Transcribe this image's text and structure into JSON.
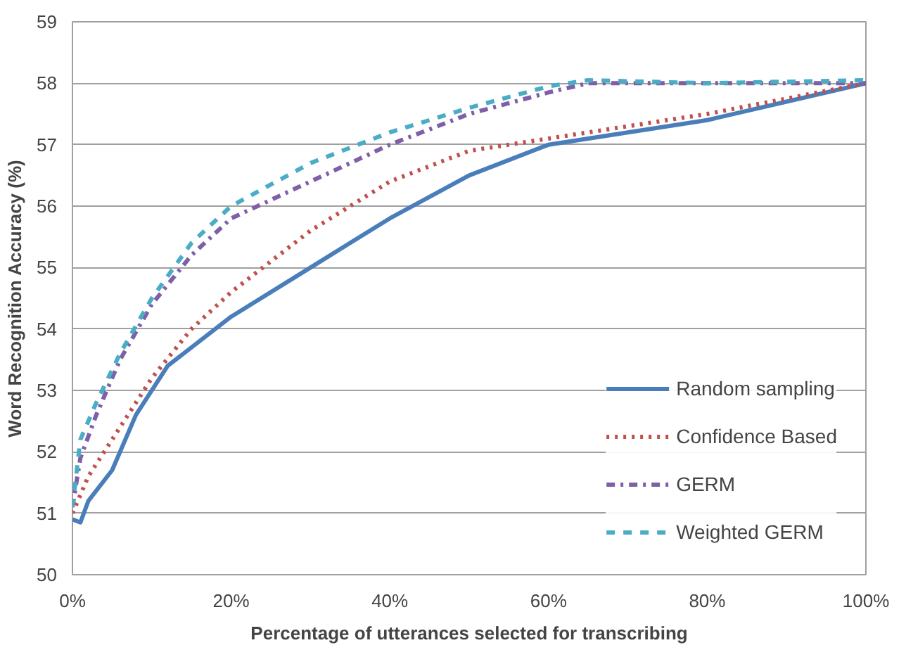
{
  "chart_data": {
    "type": "line",
    "xlabel": "Percentage of utterances selected for transcribing",
    "ylabel": "Word Recognition Accuracy (%)",
    "xlim": [
      0,
      100
    ],
    "ylim": [
      50,
      59
    ],
    "xticks": [
      {
        "value": 0,
        "label": "0%"
      },
      {
        "value": 20,
        "label": "20%"
      },
      {
        "value": 40,
        "label": "40%"
      },
      {
        "value": 60,
        "label": "60%"
      },
      {
        "value": 80,
        "label": "80%"
      },
      {
        "value": 100,
        "label": "100%"
      }
    ],
    "yticks": [
      50,
      51,
      52,
      53,
      54,
      55,
      56,
      57,
      58,
      59
    ],
    "grid": "y",
    "legend": "bottom right",
    "marker": "none",
    "series": [
      {
        "name": "Random sampling",
        "color": "#4a7ebb",
        "line_style": "solid",
        "x": [
          0,
          1,
          2,
          5,
          8,
          12,
          20,
          30,
          40,
          50,
          60,
          70,
          80,
          90,
          100
        ],
        "values": [
          50.9,
          50.85,
          51.2,
          51.7,
          52.6,
          53.4,
          54.2,
          55.0,
          55.8,
          56.5,
          57.0,
          57.2,
          57.4,
          57.7,
          58.0
        ]
      },
      {
        "name": "Confidence Based",
        "color": "#c0504d",
        "line_style": "dotted",
        "x": [
          0,
          2,
          5,
          10,
          15,
          20,
          30,
          40,
          50,
          60,
          70,
          80,
          90,
          100
        ],
        "values": [
          51.0,
          51.6,
          52.2,
          53.2,
          54.0,
          54.6,
          55.6,
          56.4,
          56.9,
          57.1,
          57.3,
          57.5,
          57.75,
          58.0
        ]
      },
      {
        "name": "GERM",
        "color": "#7f5fa8",
        "line_style": "dashdot",
        "x": [
          0,
          1,
          3,
          6,
          10,
          15,
          20,
          30,
          40,
          50,
          60,
          65,
          80,
          100
        ],
        "values": [
          51.1,
          51.9,
          52.6,
          53.5,
          54.4,
          55.2,
          55.8,
          56.4,
          57.0,
          57.5,
          57.85,
          58.0,
          58.0,
          58.0
        ]
      },
      {
        "name": "Weighted GERM",
        "color": "#4bacc6",
        "line_style": "dashed",
        "x": [
          0,
          1,
          3,
          6,
          10,
          15,
          20,
          30,
          40,
          50,
          60,
          65,
          80,
          100
        ],
        "values": [
          51.1,
          52.2,
          52.8,
          53.6,
          54.5,
          55.4,
          56.0,
          56.7,
          57.2,
          57.6,
          57.95,
          58.05,
          58.0,
          58.05
        ]
      }
    ]
  }
}
